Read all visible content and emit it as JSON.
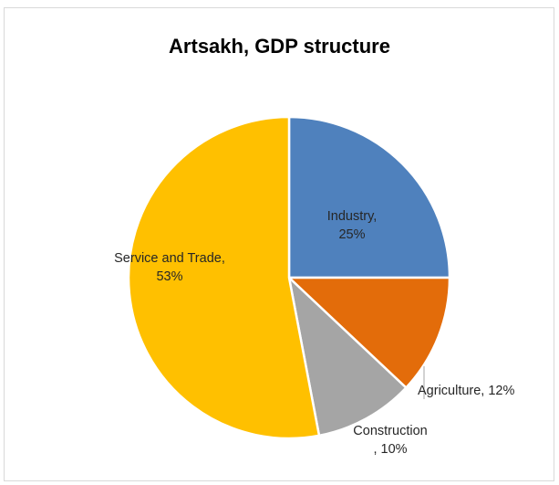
{
  "chart_data": {
    "type": "pie",
    "title": "Artsakh, GDP structure",
    "slices": [
      {
        "label": "Industry",
        "value": 25,
        "color": "#4f81bd",
        "label_lines": [
          "Industry,",
          "25%"
        ]
      },
      {
        "label": "Agriculture",
        "value": 12,
        "color": "#e36c0a",
        "label_lines": [
          "Agriculture, 12%"
        ]
      },
      {
        "label": "Construction",
        "value": 10,
        "color": "#a5a5a5",
        "label_lines": [
          "Construction",
          ", 10%"
        ]
      },
      {
        "label": "Service and Trade",
        "value": 53,
        "color": "#ffc000",
        "label_lines": [
          "Service and Trade,",
          "53%"
        ]
      }
    ],
    "start_angle_deg": 0,
    "direction": "clockwise",
    "legend": "none"
  }
}
